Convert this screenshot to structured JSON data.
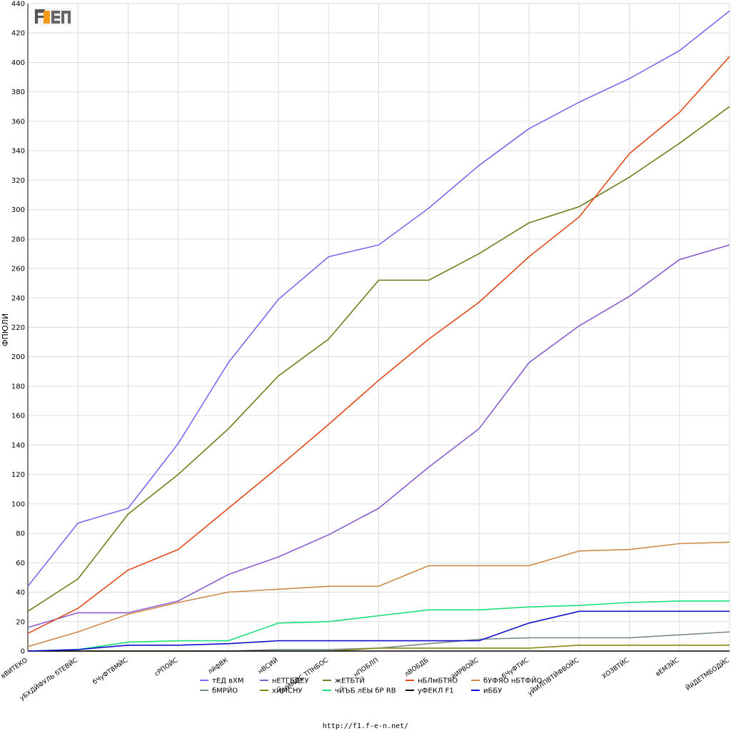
{
  "footer": {
    "url": "http://f1.f-e-n.net/"
  },
  "logo": {
    "text": "F1EN"
  },
  "chart_data": {
    "type": "line",
    "title": "",
    "xlabel": "",
    "ylabel": "ФПЮЛИ",
    "ylim": [
      0,
      440
    ],
    "ytick_step": 20,
    "grid": true,
    "legend_position": "bottom",
    "categories": [
      "вВИТЕКО",
      "уБХДЙФУЛЬ бТЕВЙС",
      "бЧуФТВМЙС",
      "сРПОЙС",
      "лйфВК",
      "нВСИЙ",
      "бНЙМЙС ТПНБОС",
      "нПОБЛП",
      "лВОБДБ",
      "йИРВОЙС",
      "бЧуФТИС",
      "уЙИЛПВТЙФВОЙС",
      "ХОЗВТЙС",
      "вЕМЗЙС",
      "ЙйДЕТМБОДЙС"
    ],
    "series": [
      {
        "name": "тЕД вХМ",
        "color": "#7b68ee",
        "values": [
          44,
          87,
          97,
          141,
          196,
          239,
          268,
          276,
          301,
          330,
          355,
          373,
          389,
          408,
          435
        ]
      },
      {
        "name": "нЕТГЕДЕУ",
        "color": "#8a5ccf",
        "values": [
          16,
          26,
          26,
          34,
          52,
          64,
          79,
          97,
          125,
          151,
          196,
          221,
          241,
          266,
          276
        ]
      },
      {
        "name": "жЕТБТЙ",
        "color": "#6b7f1a",
        "values": [
          27,
          49,
          93,
          120,
          151,
          187,
          212,
          252,
          252,
          270,
          291,
          302,
          322,
          345,
          370
        ]
      },
      {
        "name": "нБЛмБТЯО",
        "color": "#e04a1a",
        "values": [
          12,
          29,
          55,
          69,
          97,
          125,
          154,
          184,
          212,
          237,
          268,
          295,
          338,
          366,
          404
        ]
      },
      {
        "name": "бУФЯО нБТФЙО",
        "color": "#cc8a4a",
        "values": [
          3,
          13,
          25,
          33,
          40,
          42,
          44,
          44,
          58,
          58,
          58,
          68,
          69,
          73,
          74
        ]
      },
      {
        "name": "бМРЙО",
        "color": "#7a8a8a",
        "values": [
          0,
          0,
          0,
          0,
          0,
          1,
          1,
          2,
          5,
          8,
          9,
          9,
          9,
          11,
          13
        ]
      },
      {
        "name": "хЙМСНУ",
        "color": "#8a8a10",
        "values": [
          0,
          0,
          0,
          0,
          0,
          0,
          0,
          2,
          2,
          2,
          2,
          4,
          4,
          4,
          4
        ]
      },
      {
        "name": "чЙЪБ лЕЫ бР RB",
        "color": "#19e07a",
        "values": [
          0,
          1,
          6,
          7,
          7,
          19,
          20,
          24,
          28,
          28,
          30,
          31,
          33,
          34,
          34
        ]
      },
      {
        "name": "уФЕКЛ F1",
        "color": "#000000",
        "values": [
          0,
          0,
          0,
          0,
          0,
          0,
          0,
          0,
          0,
          0,
          0,
          0,
          0,
          0,
          0
        ]
      },
      {
        "name": "иББУ",
        "color": "#1010cc",
        "values": [
          0,
          1,
          4,
          4,
          5,
          7,
          7,
          7,
          7,
          7,
          19,
          27,
          27,
          27,
          27
        ]
      }
    ]
  }
}
